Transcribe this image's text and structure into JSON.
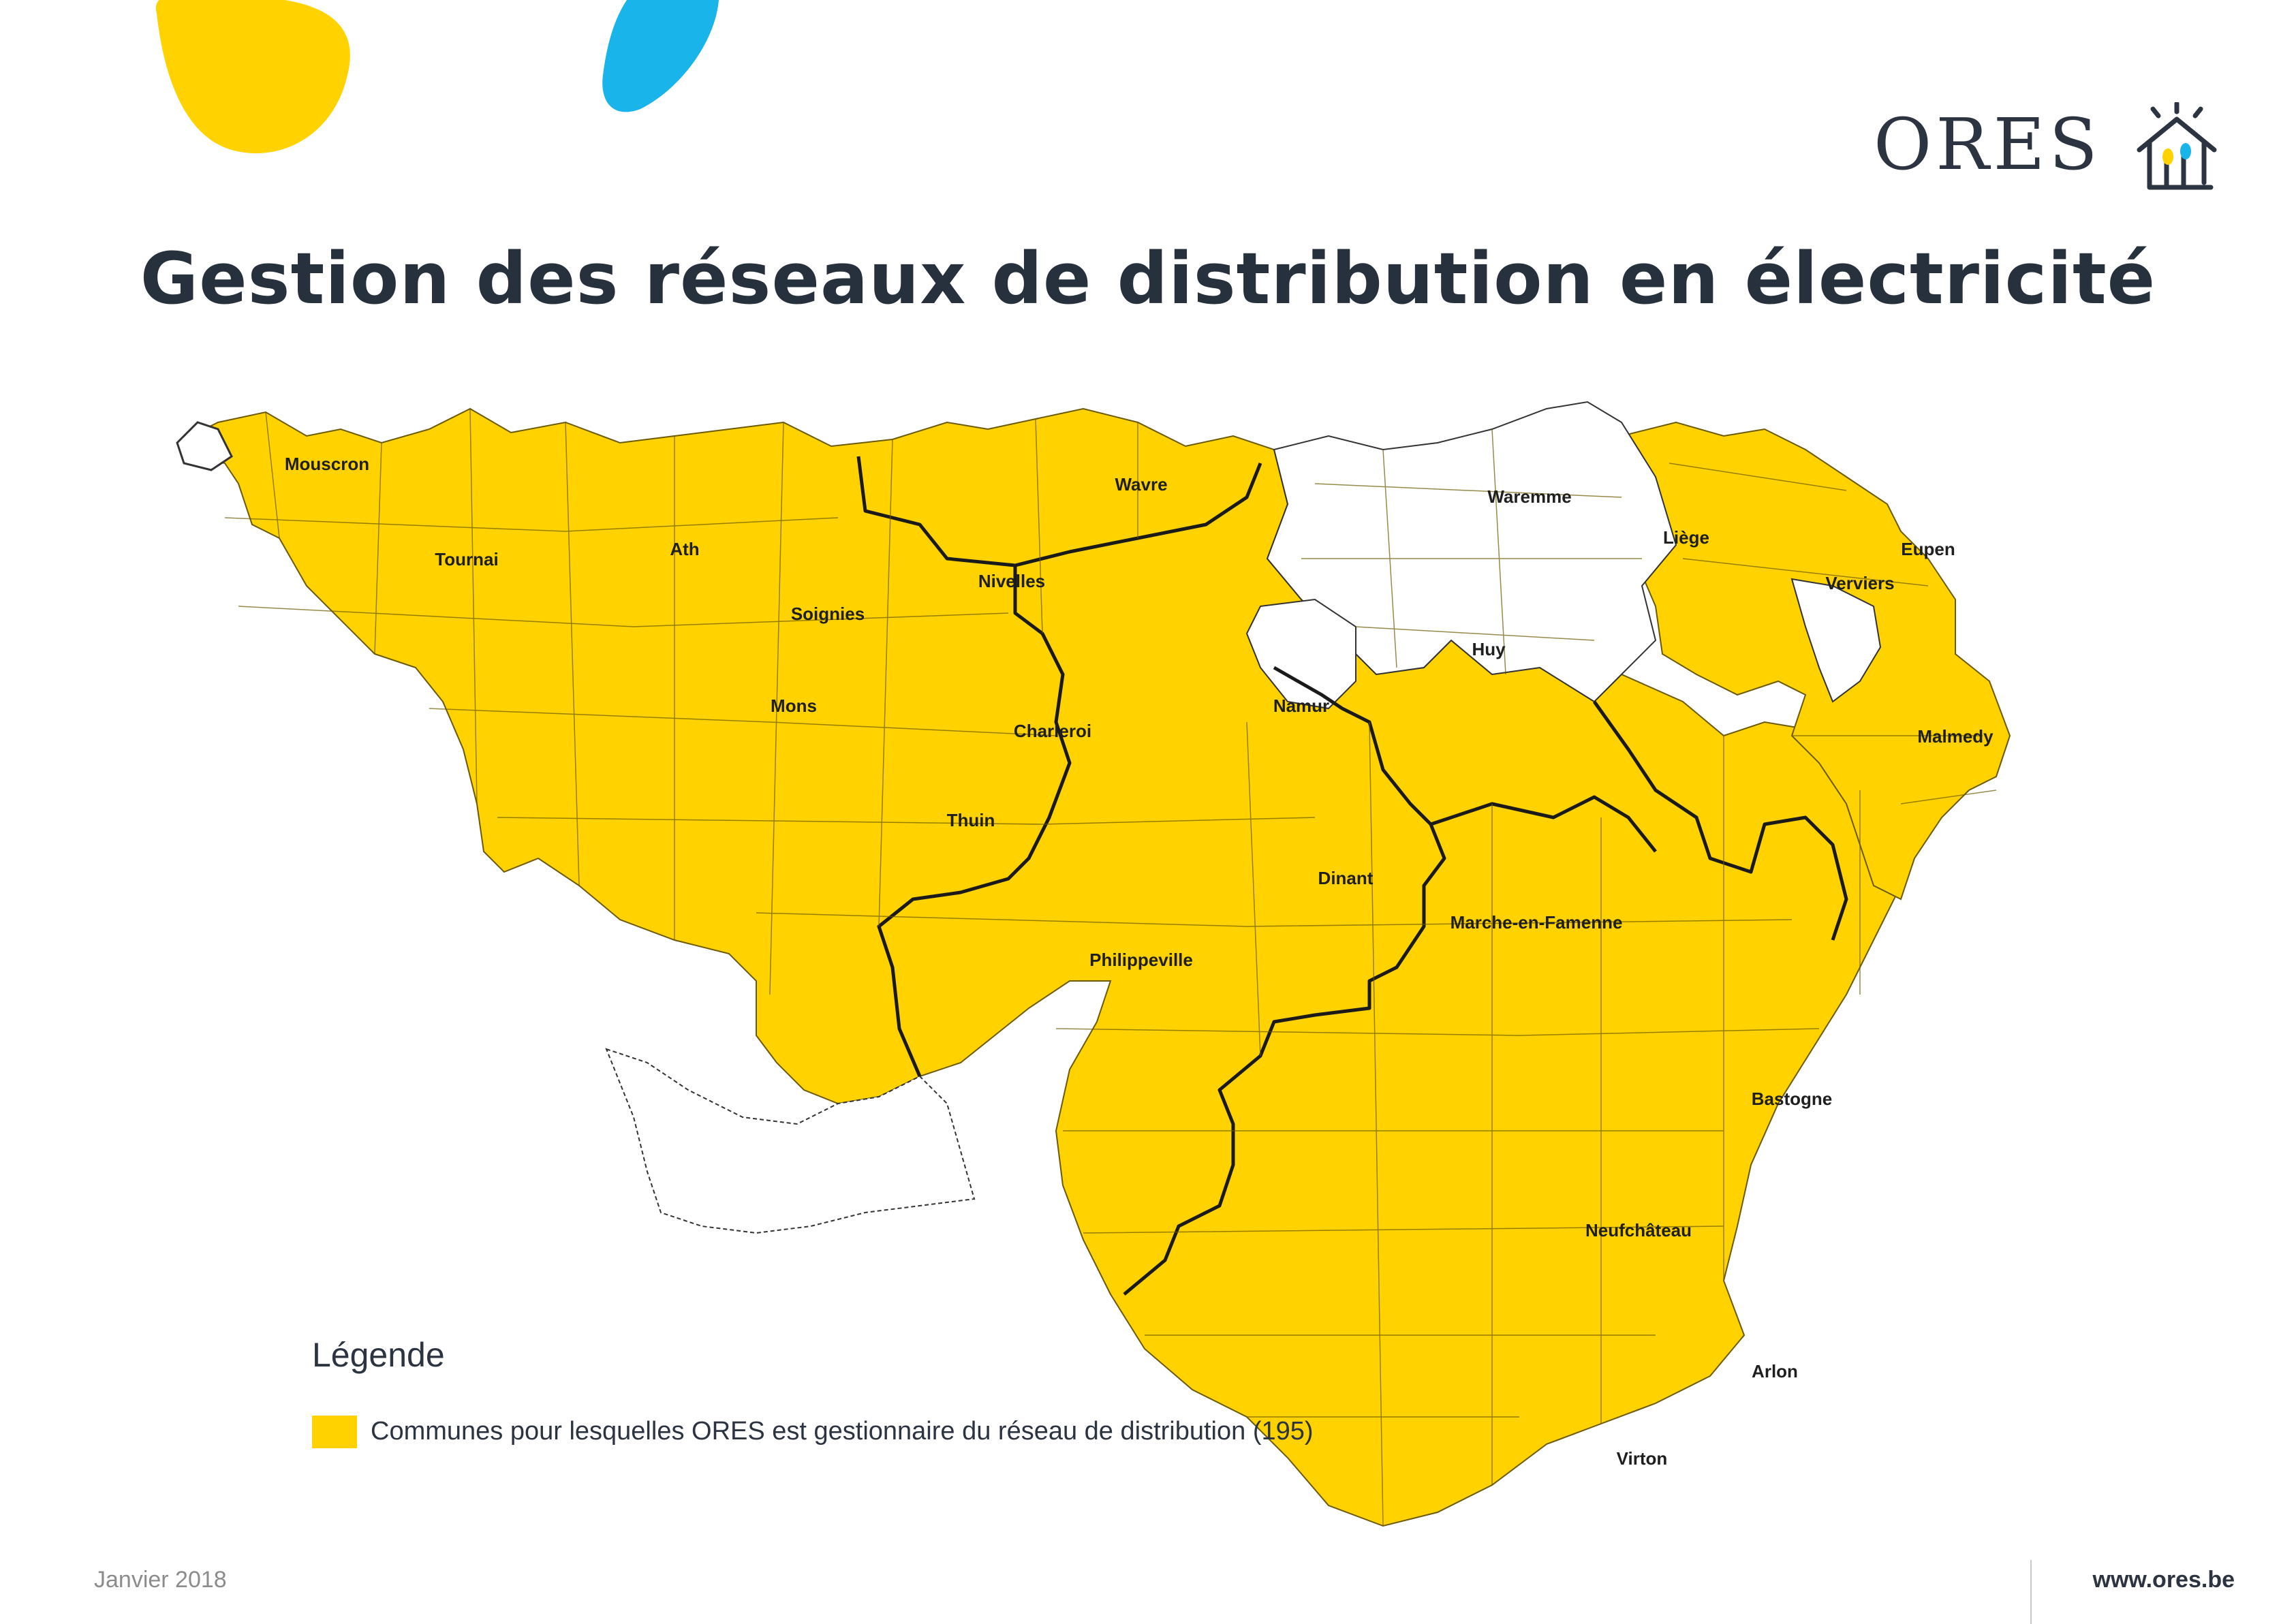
{
  "logo": {
    "text": "ORES"
  },
  "title": "Gestion des réseaux de distribution en électricité",
  "colors": {
    "ores_zone": "#ffd200",
    "other_zone": "#ffffff",
    "boundary": "#1a1a1a",
    "blob_yellow": "#ffd200",
    "blob_blue": "#18b4ea"
  },
  "map": {
    "cities": [
      "Mouscron",
      "Tournai",
      "Ath",
      "Soignies",
      "Mons",
      "Nivelles",
      "Wavre",
      "Charleroi",
      "Thuin",
      "Namur",
      "Philippeville",
      "Dinant",
      "Waremme",
      "Liège",
      "Huy",
      "Verviers",
      "Eupen",
      "Malmedy",
      "Marche-en-Famenne",
      "Bastogne",
      "Neufchâteau",
      "Arlon",
      "Virton"
    ]
  },
  "legend": {
    "title": "Légende",
    "items": [
      {
        "label": "Communes pour lesquelles ORES est gestionnaire du réseau de distribution (195)",
        "color": "#ffd200"
      }
    ]
  },
  "footer": {
    "date": "Janvier 2018",
    "url": "www.ores.be"
  }
}
